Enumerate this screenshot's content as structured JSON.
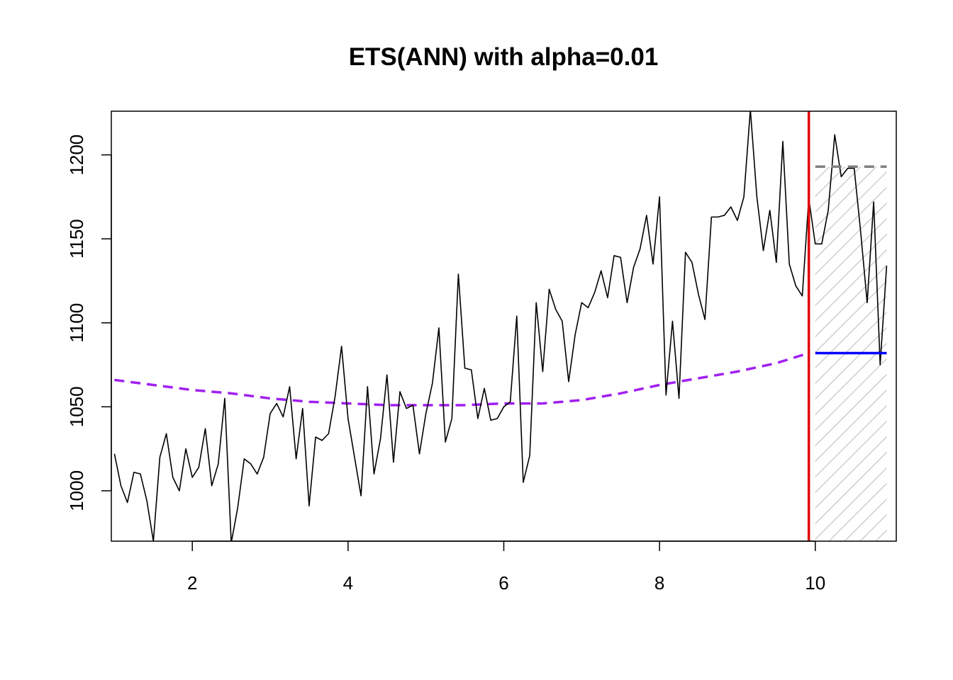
{
  "chart_data": {
    "type": "line",
    "title": "ETS(ANN) with alpha=0.01",
    "xlabel": "",
    "ylabel": "",
    "xlim": [
      0.96,
      11.04
    ],
    "ylim": [
      970,
      1226
    ],
    "x_ticks": [
      2,
      4,
      6,
      8,
      10
    ],
    "y_ticks": [
      1000,
      1050,
      1100,
      1150,
      1200
    ],
    "grid": false,
    "legend": "none",
    "colors": {
      "actuals": "#000000",
      "fitted": "#a020f0",
      "forecast": "#0000ff",
      "holdout_line": "#e00000",
      "interval": "#808080",
      "hatch": "#c8c8c8"
    },
    "series": [
      {
        "role": "actuals",
        "x_start": 1.0,
        "x_step": 0.08333,
        "values": [
          1022,
          1003,
          993,
          1011,
          1010,
          994,
          970,
          1020,
          1034,
          1008,
          1000,
          1025,
          1008,
          1014,
          1037,
          1003,
          1016,
          1055,
          969,
          990,
          1019,
          1016,
          1010,
          1020,
          1046,
          1052,
          1044,
          1062,
          1019,
          1049,
          991,
          1032,
          1030,
          1034,
          1056,
          1086,
          1043,
          1020,
          997,
          1062,
          1010,
          1031,
          1069,
          1017,
          1059,
          1049,
          1051,
          1022,
          1046,
          1064,
          1097,
          1029,
          1043,
          1129,
          1073,
          1072,
          1043,
          1061,
          1042,
          1043,
          1050,
          1053,
          1104,
          1005,
          1021,
          1112,
          1071,
          1120,
          1108,
          1101,
          1065,
          1093,
          1112,
          1109,
          1118,
          1131,
          1115,
          1140,
          1139,
          1112,
          1133,
          1144,
          1164,
          1135,
          1175,
          1057,
          1101,
          1055,
          1142,
          1136,
          1117,
          1102,
          1163,
          1163,
          1164,
          1169,
          1161,
          1175,
          1227,
          1175,
          1143,
          1167,
          1136,
          1208,
          1135,
          1122,
          1116,
          1174,
          1147,
          1147,
          1167,
          1212,
          1187,
          1192,
          1192,
          1154,
          1112,
          1172,
          1075,
          1134
        ]
      },
      {
        "role": "fitted",
        "x": [
          1.0,
          1.5,
          2.0,
          2.5,
          3.0,
          3.5,
          4.0,
          4.5,
          5.0,
          5.5,
          6.0,
          6.5,
          7.0,
          7.5,
          8.0,
          8.5,
          9.0,
          9.5,
          9.917
        ],
        "values": [
          1066,
          1063,
          1060,
          1058,
          1055,
          1053,
          1052,
          1051,
          1051,
          1051,
          1052,
          1052,
          1054,
          1058,
          1063,
          1067,
          1071,
          1076,
          1082
        ]
      },
      {
        "role": "forecast",
        "x": [
          10.0,
          10.917
        ],
        "values": [
          1082,
          1082
        ]
      },
      {
        "role": "interval_upper",
        "x": [
          10.0,
          10.917
        ],
        "values": [
          1193,
          1193
        ]
      },
      {
        "role": "interval_lower",
        "x": [
          10.0,
          10.917
        ],
        "values": [
          969,
          969
        ]
      }
    ],
    "holdout_start": 9.917
  }
}
